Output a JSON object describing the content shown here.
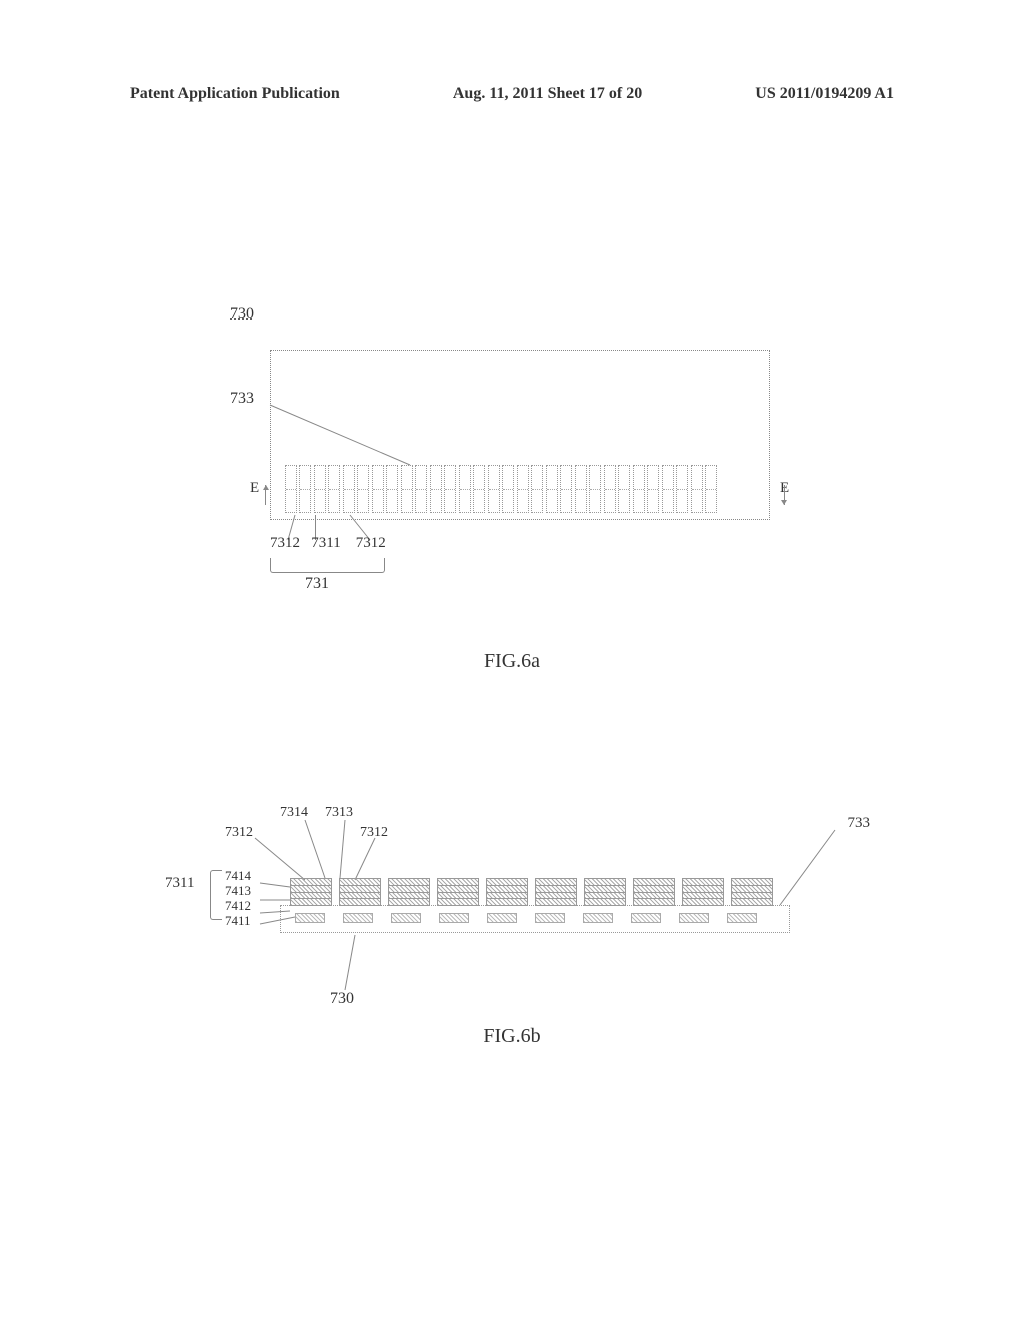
{
  "header": {
    "left": "Patent Application Publication",
    "center": "Aug. 11, 2011  Sheet 17 of 20",
    "right": "US 2011/0194209 A1"
  },
  "fig6a": {
    "caption": "FIG.6a",
    "label_730": "730",
    "label_733": "733",
    "label_7312_left": "7312",
    "label_7311": "7311",
    "label_7312_right": "7312",
    "label_731": "731",
    "e_left": "E",
    "e_right": "E",
    "element_count": 15,
    "colors": {
      "border": "#888888",
      "dot": "#999999",
      "background": "#ffffff"
    }
  },
  "fig6b": {
    "caption": "FIG.6b",
    "label_7314": "7314",
    "label_7313": "7313",
    "label_7312_left": "7312",
    "label_7312_right": "7312",
    "label_733": "733",
    "label_7311": "7311",
    "label_7414": "7414",
    "label_7413": "7413",
    "label_7412": "7412",
    "label_7411": "7411",
    "label_730": "730",
    "stack_count": 10,
    "bottom_count": 10,
    "layers_per_stack": 4,
    "colors": {
      "hatch": "#aaaaaa",
      "border": "#999999",
      "background": "#ffffff"
    }
  }
}
